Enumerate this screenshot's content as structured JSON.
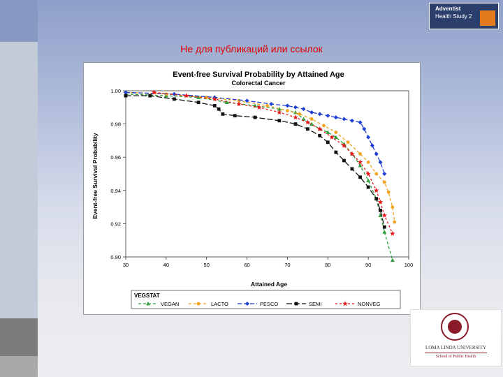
{
  "slide_title": "Не для публикаций или ссылок",
  "top_logo": {
    "line1": "Adventist",
    "line2": "Health Study 2"
  },
  "university_logo": {
    "name": "LOMA LINDA UNIVERSITY",
    "school": "School of Public Health"
  },
  "colors": {
    "vegan": "#2f9e3a",
    "lacto": "#f0a421",
    "pesco": "#1f3fd1",
    "semi": "#111111",
    "nonveg": "#e8151b"
  },
  "chart_data": {
    "type": "line",
    "title": "Event-free Survival Probability by Attained Age",
    "subtitle": "Colorectal Cancer",
    "xlabel": "Attained Age",
    "ylabel": "Event-free Survival Probability",
    "xlim": [
      30,
      100
    ],
    "ylim": [
      0.9,
      1.0
    ],
    "x_ticks": [
      "30",
      "40",
      "50",
      "60",
      "70",
      "80",
      "90",
      "100"
    ],
    "y_ticks": [
      "0.90",
      "0.92",
      "0.94",
      "0.96",
      "0.98",
      "1.00"
    ],
    "legend_title": "VEGSTAT",
    "legend_position": "bottom",
    "series": [
      {
        "name": "VEGAN",
        "color": "#2f9e3a",
        "marker": "triangle",
        "dash": "4,3",
        "x": [
          30,
          40,
          48,
          55,
          62,
          68,
          72,
          74,
          76,
          78,
          80,
          82,
          84,
          86,
          88,
          90,
          92,
          93,
          94,
          96
        ],
        "y": [
          0.998,
          0.997,
          0.996,
          0.993,
          0.991,
          0.989,
          0.987,
          0.983,
          0.98,
          0.977,
          0.975,
          0.972,
          0.968,
          0.962,
          0.955,
          0.946,
          0.935,
          0.925,
          0.915,
          0.898
        ]
      },
      {
        "name": "LACTO",
        "color": "#f0a421",
        "marker": "circle",
        "dash": "4,3",
        "x": [
          30,
          40,
          50,
          58,
          65,
          70,
          73,
          76,
          79,
          82,
          85,
          88,
          90,
          92,
          94,
          95,
          96,
          96.5
        ],
        "y": [
          0.999,
          0.998,
          0.996,
          0.994,
          0.991,
          0.988,
          0.986,
          0.983,
          0.979,
          0.975,
          0.969,
          0.962,
          0.957,
          0.95,
          0.945,
          0.939,
          0.93,
          0.921
        ]
      },
      {
        "name": "PESCO",
        "color": "#1f3fd1",
        "marker": "diamond",
        "dash": "6,3",
        "x": [
          30,
          42,
          52,
          60,
          66,
          70,
          72,
          74,
          76,
          78,
          80,
          82,
          84,
          86,
          88,
          89,
          90,
          91,
          92,
          93,
          94
        ],
        "y": [
          0.999,
          0.998,
          0.996,
          0.994,
          0.992,
          0.991,
          0.99,
          0.989,
          0.987,
          0.986,
          0.985,
          0.984,
          0.983,
          0.982,
          0.981,
          0.977,
          0.972,
          0.967,
          0.962,
          0.957,
          0.95
        ]
      },
      {
        "name": "SEMI",
        "color": "#111111",
        "marker": "square",
        "dash": "8,3",
        "x": [
          30,
          36,
          42,
          48,
          52,
          53,
          54,
          57,
          62,
          68,
          72,
          75,
          78,
          80,
          82,
          84,
          86,
          88,
          90,
          92,
          93,
          94
        ],
        "y": [
          0.997,
          0.997,
          0.995,
          0.993,
          0.991,
          0.989,
          0.986,
          0.985,
          0.984,
          0.982,
          0.98,
          0.977,
          0.973,
          0.969,
          0.963,
          0.958,
          0.953,
          0.948,
          0.942,
          0.935,
          0.928,
          0.918
        ]
      },
      {
        "name": "NONVEG",
        "color": "#e8151b",
        "marker": "star",
        "dash": "3,3",
        "x": [
          37,
          45,
          52,
          58,
          63,
          68,
          72,
          75,
          78,
          81,
          84,
          86,
          88,
          90,
          92,
          93,
          94,
          96
        ],
        "y": [
          0.999,
          0.997,
          0.995,
          0.992,
          0.99,
          0.987,
          0.984,
          0.981,
          0.977,
          0.972,
          0.967,
          0.962,
          0.957,
          0.95,
          0.94,
          0.933,
          0.925,
          0.914
        ]
      }
    ]
  }
}
